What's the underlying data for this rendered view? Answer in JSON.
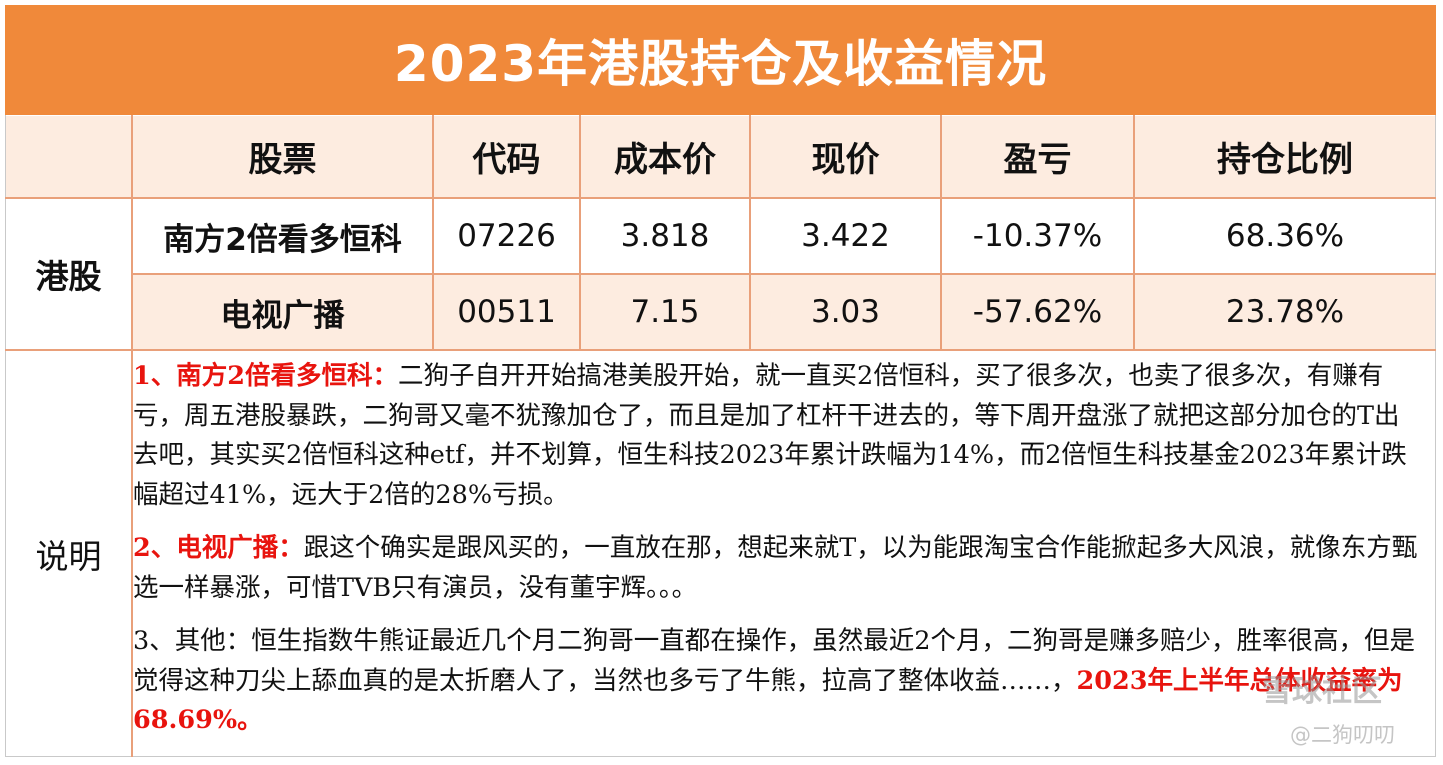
{
  "title": "2023年港股持仓及收益情况",
  "table": {
    "headers": [
      "股票",
      "代码",
      "成本价",
      "现价",
      "盈亏",
      "持仓比例"
    ],
    "group_label": "港股",
    "rows": [
      {
        "name": "南方2倍看多恒科",
        "code": "07226",
        "cost": "3.818",
        "price": "3.422",
        "pnl": "-10.37%",
        "ratio": "68.36%"
      },
      {
        "name": "电视广播",
        "code": "00511",
        "cost": "7.15",
        "price": "3.03",
        "pnl": "-57.62%",
        "ratio": "23.78%"
      }
    ]
  },
  "notes": {
    "label": "说明",
    "p1_head": "1、南方2倍看多恒科：",
    "p1_body": "二狗子自开开始搞港美股开始，就一直买2倍恒科，买了很多次，也卖了很多次，有赚有亏，周五港股暴跌，二狗哥又毫不犹豫加仓了，而且是加了杠杆干进去的，等下周开盘涨了就把这部分加仓的T出去吧，其实买2倍恒科这种etf，并不划算，恒生科技2023年累计跌幅为14%，而2倍恒生科技基金2023年累计跌幅超过41%，远大于2倍的28%亏损。",
    "p2_head": "2、电视广播：",
    "p2_body": "跟这个确实是跟风买的，一直放在那，想起来就T，以为能跟淘宝合作能掀起多大风浪，就像东方甄选一样暴涨，可惜TVB只有演员，没有董宇辉。。。",
    "p3_body": "3、其他：恒生指数牛熊证最近几个月二狗哥一直都在操作，虽然最近2个月，二狗哥是赚多赔少，胜率很高，但是觉得这种刀尖上舔血真的是太折磨人了，当然也多亏了牛熊，拉高了整体收益……，",
    "p3_tail": "2023年上半年总体收益率为68.69%。"
  },
  "watermark": {
    "site": "雪球社区",
    "author": "@二狗叨叨"
  },
  "colors": {
    "title_bg": "#f0893a",
    "row_alt_bg": "#fdece0",
    "grid": "#e9a07a",
    "highlight_red": "#e8140e"
  }
}
